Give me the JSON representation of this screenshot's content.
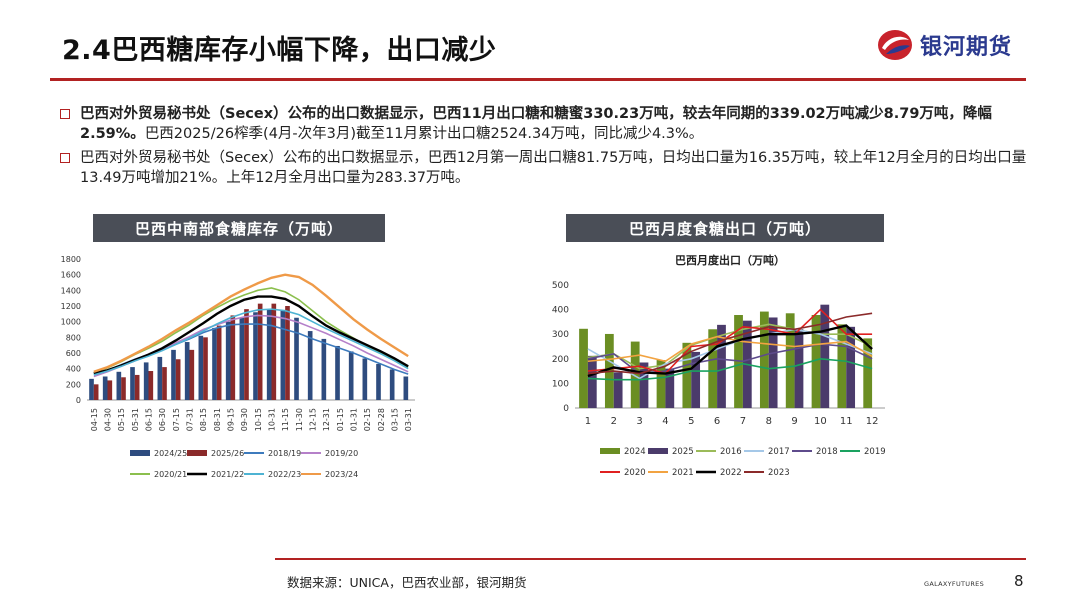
{
  "header": {
    "title": "2.4巴西糖库存小幅下降，出口减少",
    "logo_text": "银河期货"
  },
  "bullets": [
    {
      "bold": "巴西对外贸易秘书处（Secex）公布的出口数据显示，巴西11月出口糖和糖蜜330.23万吨，较去年同期的339.02万吨减少8.79万吨，降幅2.59%。",
      "rest": "巴西2025/26榨季(4月-次年3月)截至11月累计出口糖2524.34万吨，同比减少4.3%。"
    },
    {
      "bold": "",
      "rest": "巴西对外贸易秘书处（Secex）公布的出口数据显示，巴西12月第一周出口糖81.75万吨，日均出口量为16.35万吨，较上年12月全月的日均出口量13.49万吨增加21%。上年12月全月出口量为283.37万吨。"
    }
  ],
  "footer": {
    "source": "数据来源：UNICA，巴西农业部，银河期货",
    "brand": "GALAXYFUTURES",
    "page": "8"
  },
  "colors": {
    "accent": "#b22222",
    "title_box": "#4a4e57"
  },
  "chart_data": [
    {
      "type": "bar",
      "box_title": "巴西中南部食糖库存（万吨）",
      "title": "",
      "ylim": [
        0,
        1800
      ],
      "yticks": [
        "0",
        "200",
        "400",
        "600",
        "800",
        "1000",
        "1200",
        "1400",
        "1600",
        "1800"
      ],
      "categories": [
        "04-15",
        "04-30",
        "05-15",
        "05-31",
        "06-15",
        "06-30",
        "07-15",
        "07-31",
        "08-15",
        "08-31",
        "09-15",
        "09-30",
        "10-15",
        "10-31",
        "11-15",
        "11-30",
        "12-15",
        "12-31",
        "01-15",
        "01-31",
        "02-15",
        "02-28",
        "03-15",
        "03-31"
      ],
      "bar_series": [
        {
          "name": "2024/25",
          "color": "#2e4c7f",
          "values": [
            270,
            300,
            360,
            420,
            480,
            550,
            640,
            740,
            820,
            920,
            1000,
            1050,
            1120,
            1150,
            1140,
            1050,
            880,
            780,
            690,
            620,
            530,
            460,
            390,
            300
          ]
        },
        {
          "name": "2025/26",
          "color": "#8b2a2a",
          "values": [
            200,
            250,
            290,
            320,
            370,
            420,
            520,
            640,
            800,
            950,
            1080,
            1160,
            1230,
            1230,
            1200,
            null,
            null,
            null,
            null,
            null,
            null,
            null,
            null,
            null
          ]
        }
      ],
      "line_series": [
        {
          "name": "2018/19",
          "color": "#3d7bbd",
          "values": [
            330,
            380,
            450,
            520,
            580,
            640,
            710,
            780,
            860,
            920,
            960,
            970,
            970,
            950,
            900,
            850,
            780,
            720,
            660,
            600,
            530,
            460,
            390,
            330
          ]
        },
        {
          "name": "2019/20",
          "color": "#b580c9",
          "values": [
            300,
            360,
            430,
            500,
            570,
            650,
            730,
            810,
            900,
            960,
            1020,
            1060,
            1080,
            1070,
            1040,
            990,
            920,
            850,
            770,
            690,
            600,
            520,
            440,
            360
          ]
        },
        {
          "name": "2020/21",
          "color": "#8bbf4d",
          "values": [
            350,
            410,
            490,
            580,
            660,
            750,
            860,
            960,
            1080,
            1180,
            1270,
            1340,
            1400,
            1430,
            1380,
            1280,
            1140,
            1000,
            890,
            790,
            690,
            600,
            510,
            420
          ]
        },
        {
          "name": "2021/22",
          "color": "#000000",
          "values": [
            340,
            380,
            440,
            510,
            580,
            660,
            760,
            870,
            980,
            1100,
            1200,
            1280,
            1320,
            1320,
            1290,
            1200,
            1070,
            950,
            860,
            780,
            700,
            620,
            530,
            430
          ]
        },
        {
          "name": "2022/23",
          "color": "#4eb3d3",
          "values": [
            320,
            370,
            430,
            500,
            560,
            630,
            710,
            790,
            880,
            970,
            1050,
            1110,
            1150,
            1160,
            1140,
            1090,
            1000,
            910,
            830,
            750,
            670,
            590,
            500,
            400
          ]
        },
        {
          "name": "2023/24",
          "color": "#ef9a48",
          "values": [
            360,
            420,
            500,
            590,
            680,
            780,
            890,
            990,
            1100,
            1210,
            1320,
            1410,
            1490,
            1560,
            1600,
            1570,
            1470,
            1330,
            1180,
            1030,
            900,
            780,
            670,
            560
          ]
        }
      ]
    },
    {
      "type": "bar",
      "box_title": "巴西月度食糖出口（万吨）",
      "title": "巴西月度出口（万吨）",
      "ylim": [
        0,
        500
      ],
      "yticks": [
        "0",
        "100",
        "200",
        "300",
        "400",
        "500"
      ],
      "categories": [
        "1",
        "2",
        "3",
        "4",
        "5",
        "6",
        "7",
        "8",
        "9",
        "10",
        "11",
        "12"
      ],
      "bar_series": [
        {
          "name": "2024",
          "color": "#6b8e23",
          "values": [
            322,
            301,
            270,
            195,
            265,
            320,
            378,
            392,
            385,
            378,
            340,
            283
          ]
        },
        {
          "name": "2025",
          "color": "#4b3b6b",
          "values": [
            212,
            145,
            185,
            160,
            228,
            338,
            355,
            368,
            320,
            420,
            330,
            null
          ]
        }
      ],
      "line_series": [
        {
          "name": "2016",
          "color": "#9bbb59",
          "values": [
            205,
            220,
            160,
            175,
            255,
            290,
            320,
            340,
            320,
            300,
            300,
            250
          ]
        },
        {
          "name": "2017",
          "color": "#a5c8e8",
          "values": [
            240,
            180,
            120,
            180,
            200,
            240,
            280,
            300,
            320,
            300,
            260,
            220
          ]
        },
        {
          "name": "2018",
          "color": "#5e4b8c",
          "values": [
            200,
            220,
            140,
            150,
            180,
            200,
            190,
            220,
            240,
            260,
            250,
            200
          ]
        },
        {
          "name": "2019",
          "color": "#1aa260",
          "values": [
            120,
            115,
            115,
            125,
            150,
            150,
            180,
            160,
            170,
            200,
            190,
            160
          ]
        },
        {
          "name": "2020",
          "color": "#e02020",
          "values": [
            150,
            160,
            170,
            140,
            250,
            260,
            330,
            320,
            300,
            400,
            300,
            300
          ]
        },
        {
          "name": "2021",
          "color": "#f2a341",
          "values": [
            190,
            200,
            215,
            190,
            260,
            290,
            270,
            260,
            250,
            260,
            270,
            210
          ]
        },
        {
          "name": "2022",
          "color": "#000000",
          "values": [
            130,
            165,
            145,
            140,
            160,
            250,
            280,
            300,
            300,
            310,
            335,
            240
          ]
        },
        {
          "name": "2023",
          "color": "#8b2a2a",
          "values": [
            140,
            150,
            140,
            170,
            230,
            270,
            300,
            330,
            320,
            340,
            370,
            385
          ]
        }
      ]
    }
  ]
}
